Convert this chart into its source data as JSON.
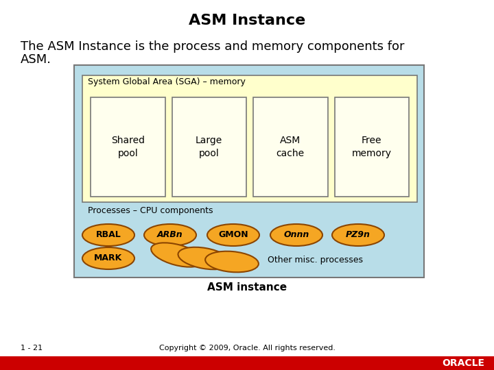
{
  "title": "ASM Instance",
  "subtitle_line1": "The ASM Instance is the process and memory components for",
  "subtitle_line2": "ASM.",
  "caption": "ASM instance",
  "footer_left": "1 - 21",
  "footer_right": "Copyright © 2009, Oracle. All rights reserved.",
  "sga_label": "System Global Area (SGA) – memory",
  "sga_boxes": [
    "Shared\npool",
    "Large\npool",
    "ASM\ncache",
    "Free\nmemory"
  ],
  "cpu_label": "Processes – CPU components",
  "ellipse_labels": [
    "RBAL",
    "ARBn",
    "GMON",
    "Onnn",
    "PZ9n"
  ],
  "ellipse_italic": [
    false,
    true,
    false,
    true,
    true
  ],
  "mark_label": "MARK",
  "misc_label": "Other misc. processes",
  "outer_bg": "#b8dde8",
  "sga_bg": "#ffffcc",
  "box_bg": "#ffffee",
  "ellipse_fill": "#f5a623",
  "ellipse_edge": "#8B4500",
  "footer_bar_color": "#cc0000",
  "background_color": "#ffffff",
  "title_fontsize": 16,
  "subtitle_fontsize": 13,
  "body_fontsize": 10,
  "small_fontsize": 9,
  "caption_fontsize": 11,
  "footer_fontsize": 8
}
